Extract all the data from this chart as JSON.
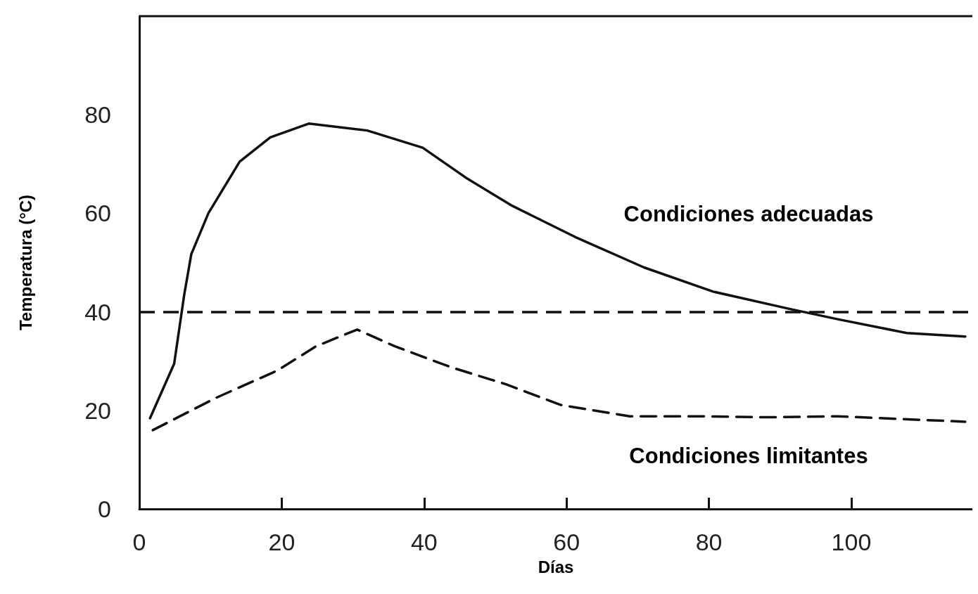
{
  "chart_data": {
    "type": "line",
    "xlabel": "Días",
    "ylabel": "Temperatura (°C)",
    "xlim": [
      0,
      117
    ],
    "ylim": [
      0,
      100
    ],
    "xticks": [
      0,
      20,
      40,
      60,
      80,
      100
    ],
    "yticks": [
      0,
      20,
      40,
      60,
      80
    ],
    "grid": false,
    "marker": "none",
    "series": [
      {
        "color": "#111111",
        "line_style": "solid",
        "x": [
          1.5,
          4.9,
          6.3,
          7.3,
          9.7,
          14.1,
          18.4,
          23.8,
          32,
          39.8,
          46.1,
          52.4,
          61.2,
          70.9,
          80.6,
          91.3,
          98.1,
          107.8,
          116
        ],
        "values": [
          18.4,
          29.5,
          43.4,
          51.7,
          60,
          70.5,
          75.4,
          78.2,
          76.8,
          73.3,
          67,
          61.5,
          55.2,
          49,
          44.1,
          40.6,
          38.5,
          35.7,
          35
        ]
      },
      {
        "color": "#111111",
        "line_style": "dashed",
        "x": [
          1.9,
          10.7,
          19.4,
          24.8,
          30.6,
          35.9,
          43.7,
          51.5,
          59.2,
          68.9,
          78.6,
          88.3,
          98,
          116
        ],
        "values": [
          16,
          22.5,
          28.1,
          33,
          36.4,
          33,
          28.8,
          25.3,
          21.1,
          18.8,
          18.8,
          18.6,
          18.8,
          17.7
        ]
      }
    ],
    "ref_lines": [
      {
        "axis": "y",
        "value": 40,
        "color": "#111111",
        "line_style": "dashed"
      }
    ],
    "annotations": [
      "Condiciones adecuadas",
      "Condiciones limitantes"
    ]
  }
}
